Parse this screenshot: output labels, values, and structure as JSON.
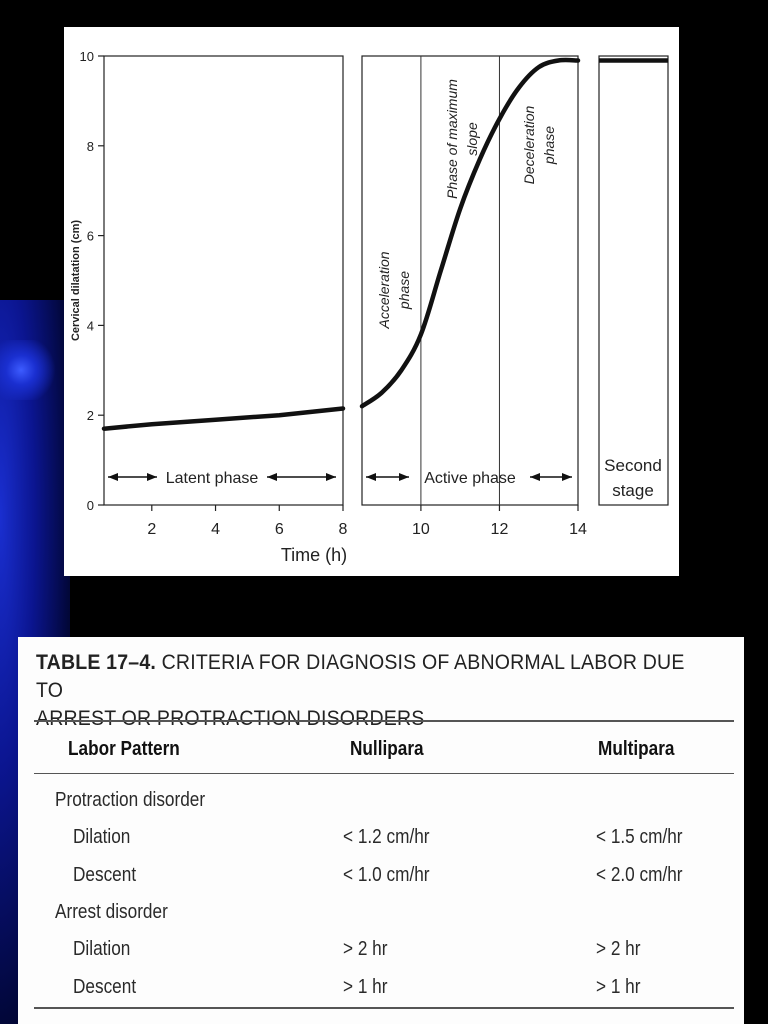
{
  "chart_data": {
    "type": "line",
    "xlabel": "Time (h)",
    "ylabel": "Cervical dilatation (cm)",
    "ylim": [
      0,
      10
    ],
    "y_ticks": [
      "0",
      "2",
      "4",
      "6",
      "8",
      "10"
    ],
    "x_ticks": [
      "2",
      "4",
      "6",
      "8",
      "10",
      "12",
      "14"
    ],
    "panels": [
      {
        "name": "Latent phase",
        "xlim": [
          0.5,
          8
        ],
        "points": [
          [
            0.5,
            1.7
          ],
          [
            2,
            1.8
          ],
          [
            4,
            1.9
          ],
          [
            6,
            2.0
          ],
          [
            8,
            2.15
          ]
        ]
      },
      {
        "name": "Active phase",
        "xlim": [
          8.5,
          14
        ],
        "points": [
          [
            8.5,
            2.2
          ],
          [
            9.0,
            2.5
          ],
          [
            9.5,
            3.0
          ],
          [
            10.0,
            3.8
          ],
          [
            10.5,
            5.2
          ],
          [
            11.0,
            6.6
          ],
          [
            11.5,
            7.7
          ],
          [
            12.0,
            8.6
          ],
          [
            12.5,
            9.3
          ],
          [
            13.0,
            9.75
          ],
          [
            13.5,
            9.9
          ],
          [
            14.0,
            9.9
          ]
        ],
        "dividers": [
          10,
          12
        ]
      },
      {
        "name": "Second stage",
        "points": [
          [
            0,
            9.9
          ],
          [
            1,
            9.9
          ]
        ]
      }
    ],
    "annotations": {
      "latent": "Latent phase",
      "active": "Active phase",
      "second_line1": "Second",
      "second_line2": "stage",
      "accel_line1": "Acceleration",
      "accel_line2": "phase",
      "max_line1": "Phase of maximum",
      "max_line2": "slope",
      "decel_line1": "Deceleration",
      "decel_line2": "phase"
    }
  },
  "table": {
    "title_bold": "TABLE 17–4.",
    "title_rest_line1": "CRITERIA FOR DIAGNOSIS OF ABNORMAL LABOR DUE TO",
    "title_line2": "ARREST OR PROTRACTION DISORDERS",
    "headers": [
      "Labor Pattern",
      "Nullipara",
      "Multipara"
    ],
    "rows": [
      {
        "label": "Protraction disorder",
        "nullipara": "",
        "multipara": "",
        "indent": false
      },
      {
        "label": "Dilation",
        "nullipara": "< 1.2 cm/hr",
        "multipara": "< 1.5 cm/hr",
        "indent": true
      },
      {
        "label": "Descent",
        "nullipara": "< 1.0 cm/hr",
        "multipara": "< 2.0 cm/hr",
        "indent": true
      },
      {
        "label": "Arrest disorder",
        "nullipara": "",
        "multipara": "",
        "indent": false
      },
      {
        "label": "Dilation",
        "nullipara": "> 2 hr",
        "multipara": "> 2 hr",
        "indent": true
      },
      {
        "label": "Descent",
        "nullipara": "> 1 hr",
        "multipara": "> 1 hr",
        "indent": true
      }
    ]
  }
}
